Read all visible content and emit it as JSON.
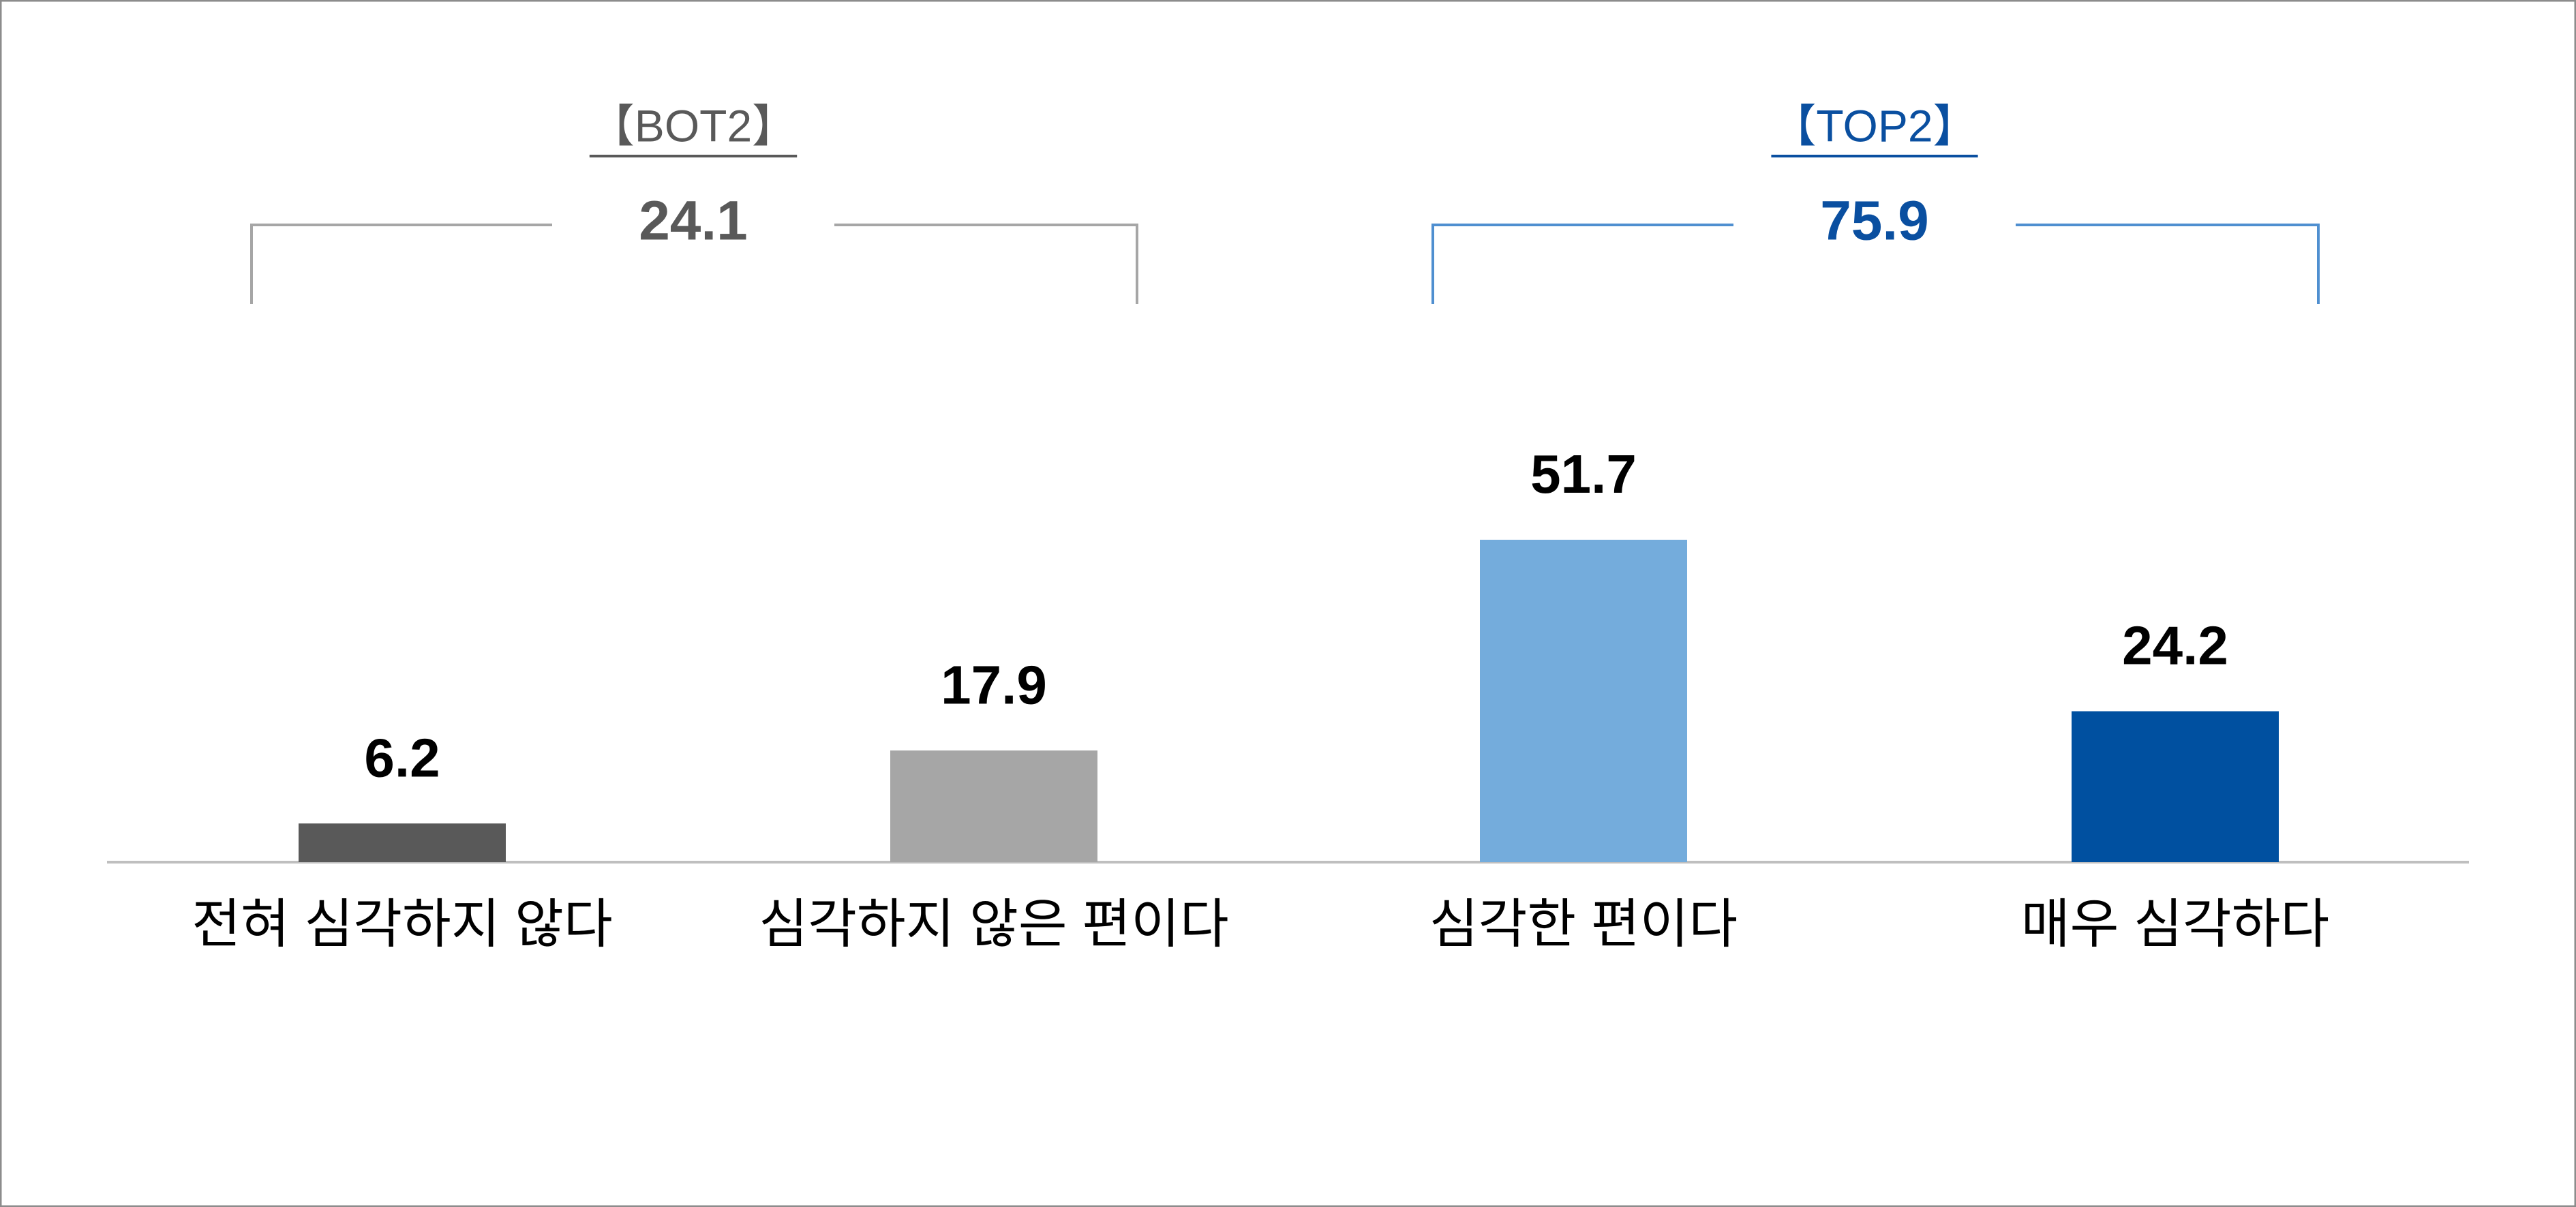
{
  "chart_data": {
    "type": "bar",
    "categories": [
      "전혀 심각하지 않다",
      "심각하지 않은 편이다",
      "심각한 편이다",
      "매우 심각하다"
    ],
    "values": [
      6.2,
      17.9,
      51.7,
      24.2
    ],
    "colors": [
      "#595959",
      "#a6a6a6",
      "#74acdc",
      "#0050a0"
    ],
    "groups": [
      {
        "label": "【BOT2】",
        "value": 24.1,
        "color": "#595959",
        "bracket_color": "#a6a6a6"
      },
      {
        "label": "【TOP2】",
        "value": 75.9,
        "color": "#0a4fa0",
        "bracket_color": "#4f8fd0"
      }
    ]
  }
}
